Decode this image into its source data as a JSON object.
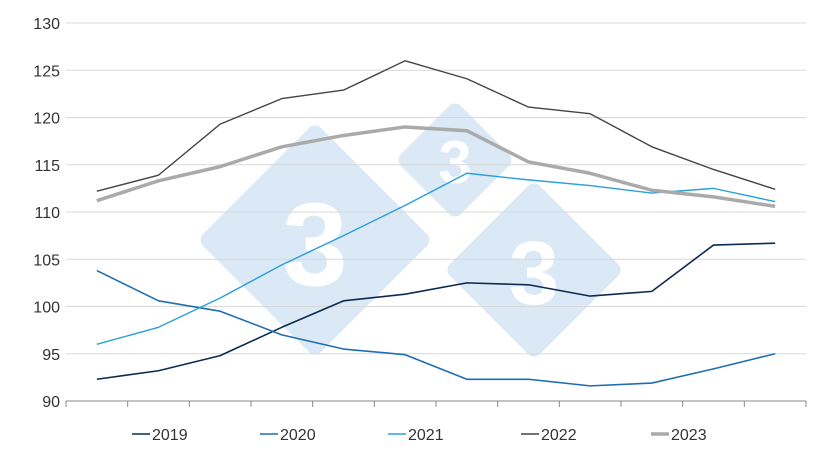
{
  "chart_data": {
    "type": "line",
    "title": "",
    "xlabel": "",
    "ylabel": "",
    "ylim": [
      90,
      130
    ],
    "yticks": [
      "90",
      "95",
      "100",
      "105",
      "110",
      "115",
      "120",
      "125",
      "130"
    ],
    "grid": "horizontal",
    "legend_placement": "bottom",
    "x": [
      1,
      2,
      3,
      4,
      5,
      6,
      7,
      8,
      9,
      10,
      11,
      12
    ],
    "series": [
      {
        "name": "2019",
        "color": "#0d2b52",
        "width": 1.6,
        "values": [
          92.3,
          93.2,
          94.8,
          97.8,
          100.6,
          101.3,
          102.5,
          102.3,
          101.1,
          101.6,
          106.5,
          106.7
        ]
      },
      {
        "name": "2020",
        "color": "#1f6eb0",
        "width": 1.6,
        "values": [
          103.8,
          100.6,
          99.5,
          97.0,
          95.5,
          94.9,
          92.3,
          92.3,
          91.6,
          91.9,
          93.4,
          95.0
        ]
      },
      {
        "name": "2021",
        "color": "#2a9fd8",
        "width": 1.4,
        "values": [
          96.0,
          97.8,
          100.9,
          104.4,
          107.5,
          110.7,
          114.1,
          113.4,
          112.8,
          112.0,
          112.5,
          111.1
        ]
      },
      {
        "name": "2022",
        "color": "#444444",
        "width": 1.4,
        "values": [
          112.2,
          113.9,
          119.3,
          122.0,
          122.9,
          126.0,
          124.1,
          121.1,
          120.4,
          116.9,
          114.5,
          112.4
        ]
      },
      {
        "name": "2023",
        "color": "#aaaaaa",
        "width": 3.5,
        "values": [
          111.2,
          113.3,
          114.8,
          116.9,
          118.1,
          119.0,
          118.6,
          115.3,
          114.1,
          112.3,
          111.6,
          110.6
        ]
      }
    ]
  },
  "watermark": {
    "logo_text": "333",
    "color": "#dbe8f5"
  }
}
